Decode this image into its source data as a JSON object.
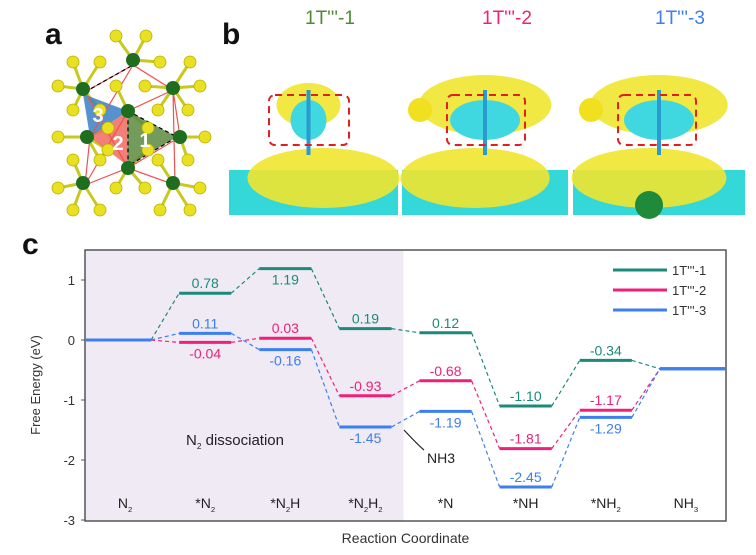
{
  "panels": {
    "a": "a",
    "b": "b",
    "c": "c"
  },
  "panel_a": {
    "triangle_labels": [
      "1",
      "2",
      "3"
    ]
  },
  "panel_b": {
    "titles": [
      "1T'''-1",
      "1T'''-2",
      "1T'''-3"
    ]
  },
  "colors": {
    "s1": "#1b8a7a",
    "s2": "#f0207a",
    "s3": "#3d7ef0",
    "t1": "#4f8a32",
    "shade": "#efeaf4"
  },
  "chart_data": {
    "type": "line",
    "title": "",
    "xlabel": "Reaction Coordinate",
    "ylabel": "Free Energy (eV)",
    "ylim": [
      -3,
      1.5
    ],
    "yticks": [
      1,
      0,
      -1,
      -2,
      -3
    ],
    "categories": [
      "N2",
      "*N2",
      "*N2H",
      "*N2H2",
      "*N",
      "*NH",
      "*NH2",
      "NH3"
    ],
    "series": [
      {
        "name": "1T'''-1",
        "values": [
          0,
          0.78,
          1.19,
          0.19,
          0.12,
          -1.1,
          -0.34,
          -0.48
        ],
        "labels": [
          "",
          "0.78",
          "1.19",
          "0.19",
          "0.12",
          "-1.10",
          "-0.34",
          ""
        ],
        "label_pos": [
          "",
          "above",
          "below",
          "above",
          "above",
          "above",
          "above",
          ""
        ]
      },
      {
        "name": "1T'''-2",
        "values": [
          0,
          -0.04,
          0.03,
          -0.93,
          -0.68,
          -1.81,
          -1.17,
          -0.48
        ],
        "labels": [
          "",
          "-0.04",
          "0.03",
          "-0.93",
          "-0.68",
          "-1.81",
          "-1.17",
          ""
        ],
        "label_pos": [
          "",
          "below",
          "above",
          "above",
          "above",
          "above",
          "above",
          ""
        ]
      },
      {
        "name": "1T'''-3",
        "values": [
          0,
          0.11,
          -0.16,
          -1.45,
          -1.19,
          -2.45,
          -1.29,
          -0.48
        ],
        "labels": [
          "",
          "0.11",
          "-0.16",
          "-1.45",
          "-1.19",
          "-2.45",
          "-1.29",
          ""
        ],
        "label_pos": [
          "",
          "above",
          "below",
          "below",
          "below",
          "above",
          "below",
          ""
        ]
      }
    ],
    "shaded_region": {
      "label": "N2 dissociation",
      "from": "N2",
      "to": "*N2H2"
    },
    "annotation": "NH3",
    "legend": "top-right"
  }
}
